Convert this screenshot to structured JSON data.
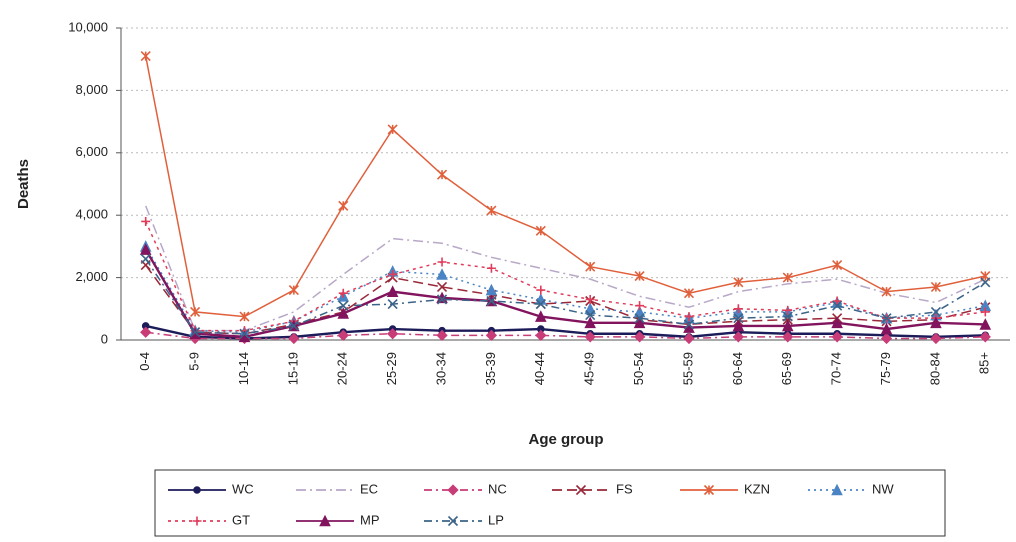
{
  "chart_data": {
    "type": "line",
    "y_label": "Deaths",
    "x_label": "Age group",
    "categories": [
      "0-4",
      "5-9",
      "10-14",
      "15-19",
      "20-24",
      "25-29",
      "30-34",
      "35-39",
      "40-44",
      "45-49",
      "50-54",
      "55-59",
      "60-64",
      "65-69",
      "70-74",
      "75-79",
      "80-84",
      "85+"
    ],
    "ylim": [
      0,
      10000
    ],
    "yticks": [
      0,
      {
        "value": 2000,
        "label": "2,000"
      },
      {
        "value": 4000,
        "label": "4,000"
      },
      {
        "value": 6000,
        "label": "6,000"
      },
      {
        "value": 8000,
        "label": "8,000"
      },
      {
        "value": 10000,
        "label": "10,000"
      }
    ],
    "grid": true,
    "series": [
      {
        "name": "WC",
        "color": "#1c1c5a",
        "dash": "none",
        "marker": "circle",
        "values": [
          450,
          100,
          50,
          100,
          250,
          350,
          300,
          300,
          350,
          200,
          200,
          100,
          250,
          200,
          200,
          150,
          100,
          150
        ]
      },
      {
        "name": "EC",
        "color": "#b8a8c8",
        "dash": "10 4 2 4",
        "marker": "none",
        "values": [
          4300,
          300,
          300,
          900,
          2100,
          3250,
          3100,
          2650,
          2300,
          1950,
          1400,
          1050,
          1550,
          1800,
          1950,
          1500,
          1200,
          1950
        ]
      },
      {
        "name": "NC",
        "color": "#c83c78",
        "dash": "8 4 2 4",
        "marker": "diamond",
        "values": [
          250,
          50,
          50,
          50,
          150,
          200,
          150,
          150,
          150,
          100,
          100,
          50,
          100,
          100,
          100,
          50,
          50,
          100
        ]
      },
      {
        "name": "FS",
        "color": "#9a2838",
        "dash": "10 5",
        "marker": "x",
        "values": [
          2400,
          250,
          200,
          500,
          900,
          2000,
          1700,
          1450,
          1150,
          1250,
          650,
          500,
          600,
          650,
          700,
          600,
          650,
          1050
        ]
      },
      {
        "name": "KZN",
        "color": "#e0603c",
        "dash": "none",
        "marker": "star",
        "values": [
          9100,
          900,
          750,
          1600,
          4300,
          6750,
          5300,
          4150,
          3500,
          2350,
          2050,
          1500,
          1850,
          2000,
          2400,
          1550,
          1700,
          2050
        ]
      },
      {
        "name": "NW",
        "color": "#4a84c4",
        "dash": "2 4",
        "marker": "triangle",
        "values": [
          3000,
          300,
          250,
          600,
          1400,
          2200,
          2100,
          1600,
          1300,
          1000,
          900,
          700,
          900,
          900,
          1200,
          700,
          800,
          1100
        ]
      },
      {
        "name": "GT",
        "color": "#e03c5a",
        "dash": "3 4",
        "marker": "plus",
        "values": [
          3800,
          300,
          300,
          600,
          1500,
          2100,
          2500,
          2300,
          1600,
          1300,
          1100,
          750,
          1000,
          950,
          1250,
          700,
          700,
          900
        ]
      },
      {
        "name": "MP",
        "color": "#82145e",
        "dash": "none",
        "marker": "triangle",
        "values": [
          2900,
          200,
          100,
          450,
          850,
          1550,
          1350,
          1250,
          750,
          550,
          550,
          400,
          450,
          450,
          550,
          350,
          550,
          500
        ]
      },
      {
        "name": "LP",
        "color": "#3c6488",
        "dash": "8 4 2 4",
        "marker": "x",
        "values": [
          2600,
          250,
          200,
          450,
          1100,
          1150,
          1300,
          1250,
          1150,
          800,
          700,
          500,
          700,
          750,
          1100,
          700,
          900,
          1850
        ]
      }
    ]
  }
}
